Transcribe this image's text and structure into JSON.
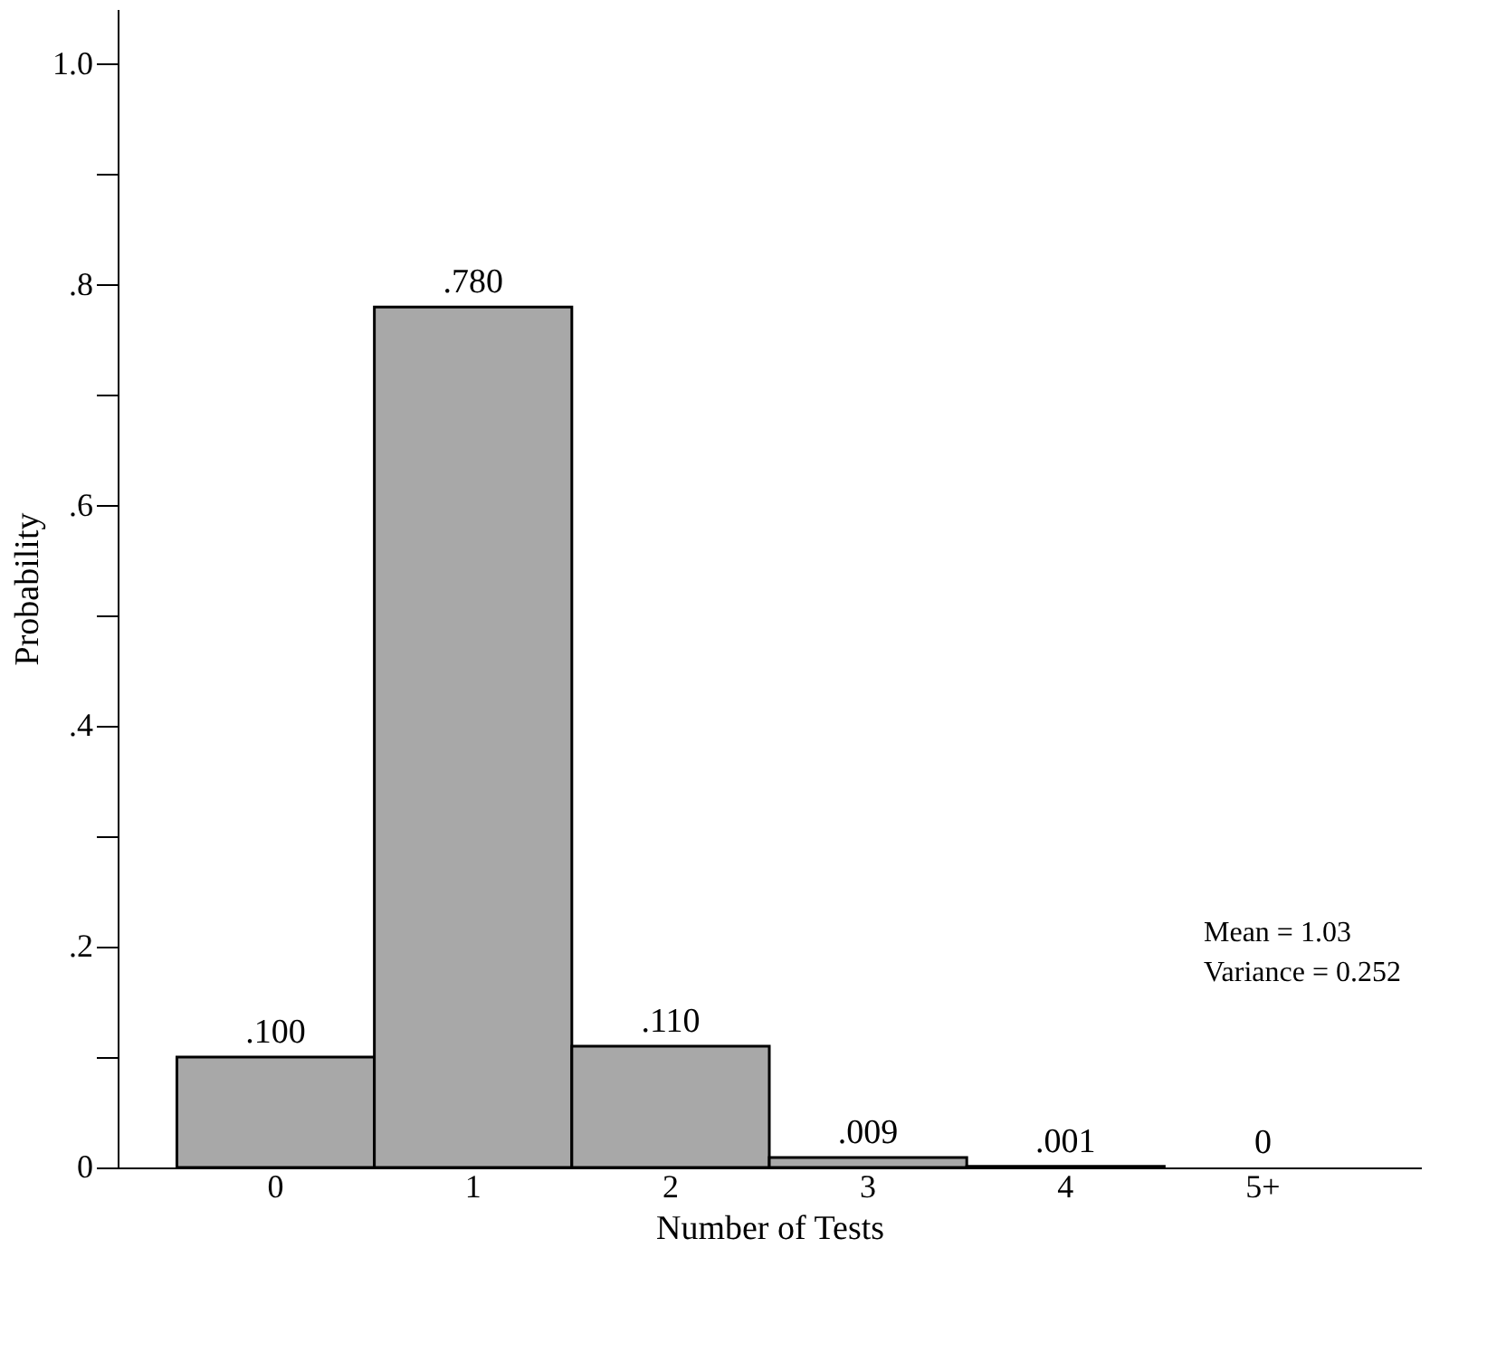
{
  "chart_data": {
    "type": "bar",
    "categories": [
      "0",
      "1",
      "2",
      "3",
      "4",
      "5+"
    ],
    "values": [
      0.1,
      0.78,
      0.11,
      0.009,
      0.001,
      0
    ],
    "value_labels": [
      ".100",
      ".780",
      ".110",
      ".009",
      ".001",
      "0"
    ],
    "color": "#a8a8a8",
    "xlabel": "Number of Tests",
    "ylabel": "Probability",
    "ylim": [
      0,
      1.05
    ],
    "yticks": [
      {
        "value": 0,
        "label": "0"
      },
      {
        "value": 0.1,
        "label": null
      },
      {
        "value": 0.2,
        "label": ".2"
      },
      {
        "value": 0.3,
        "label": null
      },
      {
        "value": 0.4,
        "label": ".4"
      },
      {
        "value": 0.5,
        "label": null
      },
      {
        "value": 0.6,
        "label": ".6"
      },
      {
        "value": 0.7,
        "label": null
      },
      {
        "value": 0.8,
        "label": ".8"
      },
      {
        "value": 0.9,
        "label": null
      },
      {
        "value": 1.0,
        "label": "1.0"
      }
    ],
    "grid": false,
    "annotations": [
      "Mean = 1.03",
      "Variance = 0.252"
    ]
  }
}
